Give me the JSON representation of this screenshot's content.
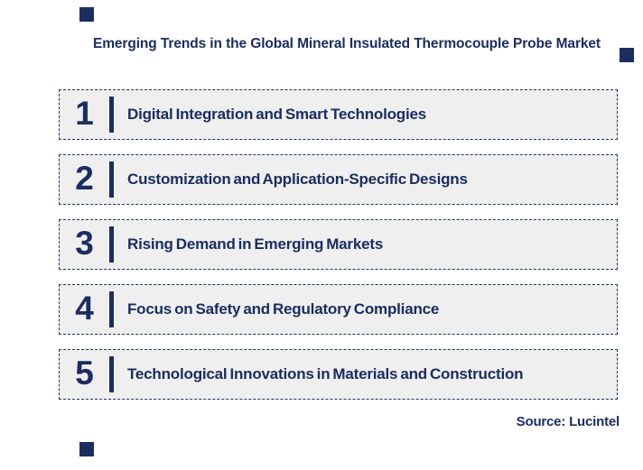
{
  "page": {
    "title": "Emerging Trends in the Global Mineral Insulated Thermocouple Probe Market",
    "source": "Source: Lucintel"
  },
  "colors": {
    "navy_text": "#1b2d61",
    "box_border": "#1f3864",
    "box_background": "#efefef",
    "page_background": "#ffffff"
  },
  "trends": [
    {
      "number": "1",
      "label": "Digital Integration and Smart Technologies"
    },
    {
      "number": "2",
      "label": "Customization and Application-Specific Designs"
    },
    {
      "number": "3",
      "label": "Rising Demand in Emerging Markets"
    },
    {
      "number": "4",
      "label": "Focus on Safety and Regulatory Compliance"
    },
    {
      "number": "5",
      "label": "Technological Innovations in Materials and Construction"
    }
  ],
  "decorations": {
    "squares": [
      "top-left",
      "title-right",
      "bottom-left"
    ]
  }
}
